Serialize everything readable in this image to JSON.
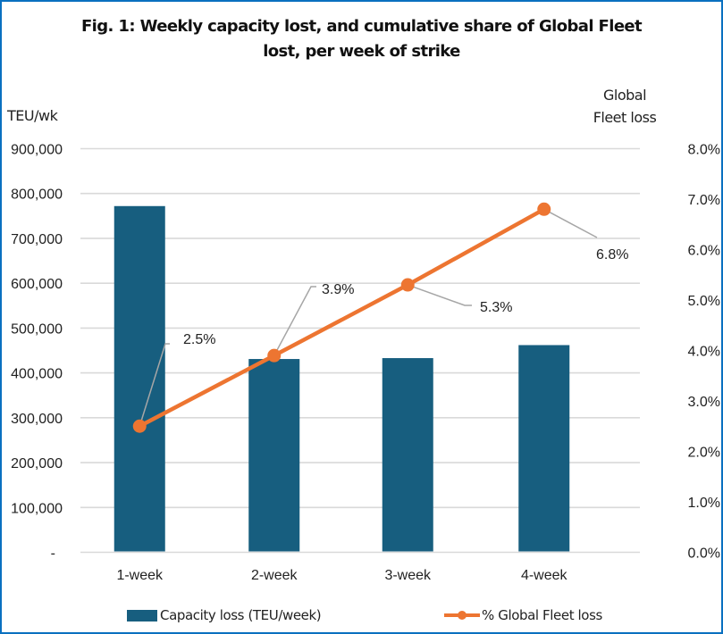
{
  "chart_data": {
    "type": "bar+line",
    "title": "Fig. 1: Weekly capacity lost, and cumulative share of Global Fleet lost, per week of strike",
    "title_lines": [
      "Fig. 1: Weekly capacity lost, and cumulative share of Global Fleet",
      "lost, per week of strike"
    ],
    "categories": [
      "1-week",
      "2-week",
      "3-week",
      "4-week"
    ],
    "series": [
      {
        "name": "Capacity loss (TEU/week)",
        "type": "bar",
        "axis": "left",
        "color": "#175e7f",
        "values": [
          772000,
          431000,
          433000,
          462000
        ]
      },
      {
        "name": "% Global Fleet loss",
        "type": "line",
        "axis": "right",
        "color": "#ed7531",
        "values": [
          2.5,
          3.9,
          5.3,
          6.8
        ],
        "data_labels": [
          "2.5%",
          "3.9%",
          "5.3%",
          "6.8%"
        ]
      }
    ],
    "y_left": {
      "label": "TEU/wk",
      "range": [
        0,
        900000
      ],
      "ticks": [
        0,
        100000,
        200000,
        300000,
        400000,
        500000,
        600000,
        700000,
        800000,
        900000
      ],
      "tick_labels": [
        "-",
        "100,000",
        "200,000",
        "300,000",
        "400,000",
        "500,000",
        "600,000",
        "700,000",
        "800,000",
        "900,000"
      ]
    },
    "y_right": {
      "label_lines": [
        "Global",
        "Fleet loss"
      ],
      "range": [
        0,
        8
      ],
      "ticks": [
        0,
        1,
        2,
        3,
        4,
        5,
        6,
        7,
        8
      ],
      "tick_labels": [
        "0.0%",
        "1.0%",
        "2.0%",
        "3.0%",
        "4.0%",
        "5.0%",
        "6.0%",
        "7.0%",
        "8.0%"
      ]
    },
    "grid": true,
    "grid_color": "#d9d9d9",
    "leader_line_color": "#a6a6a6",
    "border_color": "#0a70c0",
    "legend_position": "bottom"
  }
}
